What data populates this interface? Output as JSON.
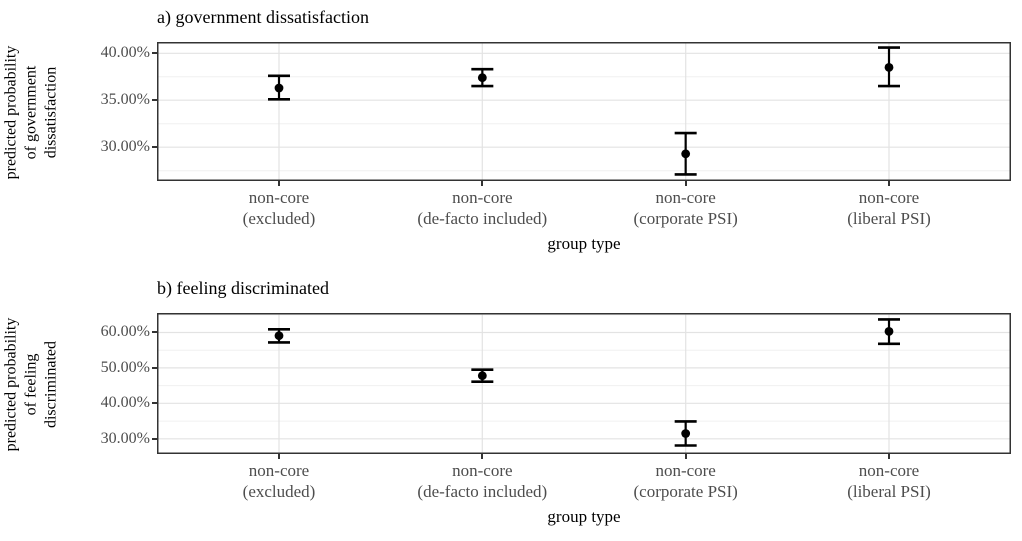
{
  "figure_type": "two-panel point-range plot (predicted probabilities with confidence intervals)",
  "style": {
    "background": "#ffffff",
    "point_color": "#000000",
    "errorbar_color": "#000000",
    "title_color": "#000000",
    "axis_label_color": "#000000",
    "tick_label_color": "#4d4d4d",
    "grid_major_color": "#e3e3e3",
    "grid_minor_color": "#f0f0f0",
    "panel_border_color": "#333333",
    "tick_mark_color": "#333333"
  },
  "chart_data": [
    {
      "type": "scatter",
      "subtype": "pointrange-with-error-bars",
      "panel_label": "a",
      "title": "a) government dissatisfaction",
      "xlabel": "group type",
      "ylabel": "predicted probability of government dissatisfaction",
      "ylabel_lines": [
        "predicted probability",
        "of government",
        "dissatisfaction"
      ],
      "categories": [
        "non-core (excluded)",
        "non-core (de-facto included)",
        "non-core (corporate PSI)",
        "non-core (liberal PSI)"
      ],
      "category_label_lines": [
        [
          "non-core",
          "(excluded)"
        ],
        [
          "non-core",
          "(de-facto included)"
        ],
        [
          "non-core",
          "(corporate PSI)"
        ],
        [
          "non-core",
          "(liberal PSI)"
        ]
      ],
      "values_pct": [
        36.3,
        37.4,
        29.3,
        38.5
      ],
      "ci_low_pct": [
        35.1,
        36.5,
        27.1,
        36.5
      ],
      "ci_high_pct": [
        37.6,
        38.3,
        31.5,
        40.6
      ],
      "yticks": [
        30,
        35,
        40
      ],
      "ytick_labels": [
        "30.00%",
        "35.00%",
        "40.00%"
      ],
      "minor_ticks": [
        27.5,
        32.5,
        37.5
      ],
      "ylim": [
        26.4,
        41.2
      ],
      "grid": "horizontal major+minor, vertical major at categories",
      "legend": "none"
    },
    {
      "type": "scatter",
      "subtype": "pointrange-with-error-bars",
      "panel_label": "b",
      "title": "b) feeling discriminated",
      "xlabel": "group type",
      "ylabel": "predicted probability of feeling discriminated",
      "ylabel_lines": [
        "predicted probability",
        "of feeling",
        "discriminated"
      ],
      "categories": [
        "non-core (excluded)",
        "non-core (de-facto included)",
        "non-core (corporate PSI)",
        "non-core (liberal PSI)"
      ],
      "category_label_lines": [
        [
          "non-core",
          "(excluded)"
        ],
        [
          "non-core",
          "(de-facto included)"
        ],
        [
          "non-core",
          "(corporate PSI)"
        ],
        [
          "non-core",
          "(liberal PSI)"
        ]
      ],
      "values_pct": [
        59.1,
        47.8,
        31.5,
        60.3
      ],
      "ci_low_pct": [
        57.2,
        46.1,
        28.1,
        56.8
      ],
      "ci_high_pct": [
        60.9,
        49.5,
        34.9,
        63.7
      ],
      "yticks": [
        30,
        40,
        50,
        60
      ],
      "ytick_labels": [
        "30.00%",
        "40.00%",
        "50.00%",
        "60.00%"
      ],
      "minor_ticks": [
        35,
        45,
        55,
        65
      ],
      "ylim": [
        25.7,
        65.5
      ],
      "grid": "horizontal major+minor, vertical major at categories",
      "legend": "none"
    }
  ]
}
